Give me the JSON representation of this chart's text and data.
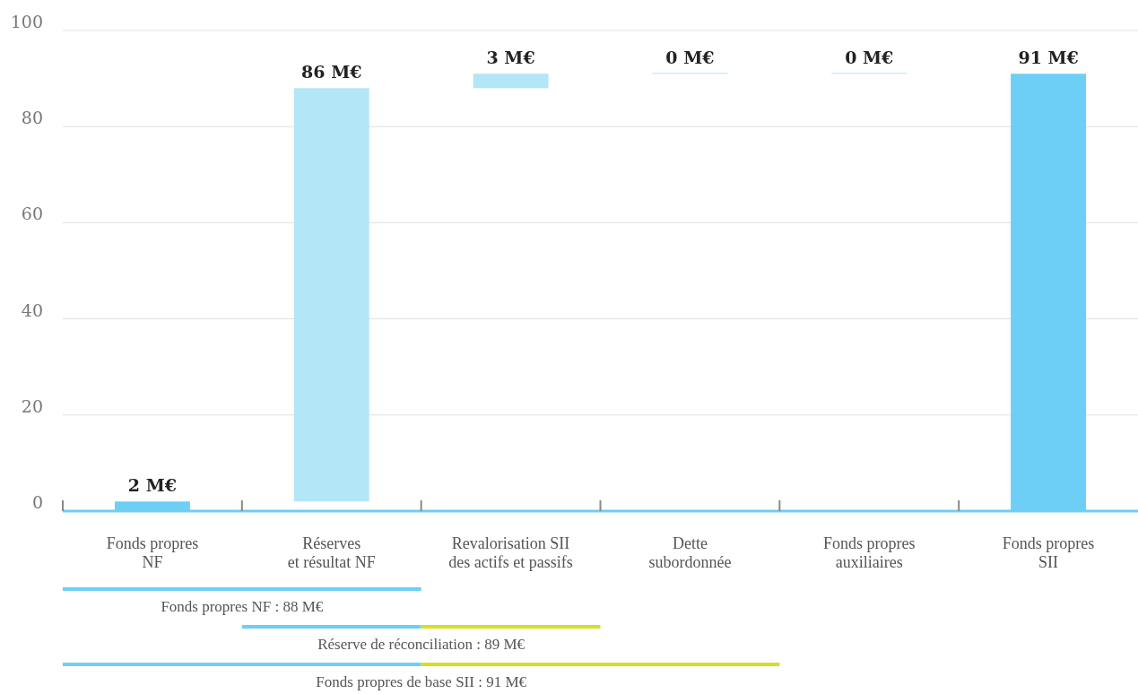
{
  "chart_data": {
    "type": "bar",
    "categories": [
      "Fonds propres\nNF",
      "Réserves\net résultat NF",
      "Revalorisation SII\ndes actifs et passifs",
      "Dette\nsubordonnée",
      "Fonds propres\nauxiliaires",
      "Fonds propres\nSII"
    ],
    "values": [
      2,
      86,
      3,
      0,
      0,
      91
    ],
    "base": [
      0,
      2,
      88,
      91,
      91,
      0
    ],
    "colors": [
      "#6dcff6",
      "#b3e6f7",
      "#b3e6f7",
      "#b3e6f7",
      "#b3e6f7",
      "#6dcff6"
    ],
    "value_labels": [
      "2 M€",
      "86 M€",
      "3 M€",
      "0 M€",
      "0 M€",
      "91 M€"
    ],
    "ylim": [
      0,
      100
    ],
    "yticks": [
      0,
      20,
      40,
      60,
      80,
      100
    ],
    "grid": "y",
    "annotations": [
      "Fonds propres NF : 88 M€",
      "Réserve de réconciliation : 89 M€",
      "Fonds propres de base SII : 91 M€"
    ]
  }
}
